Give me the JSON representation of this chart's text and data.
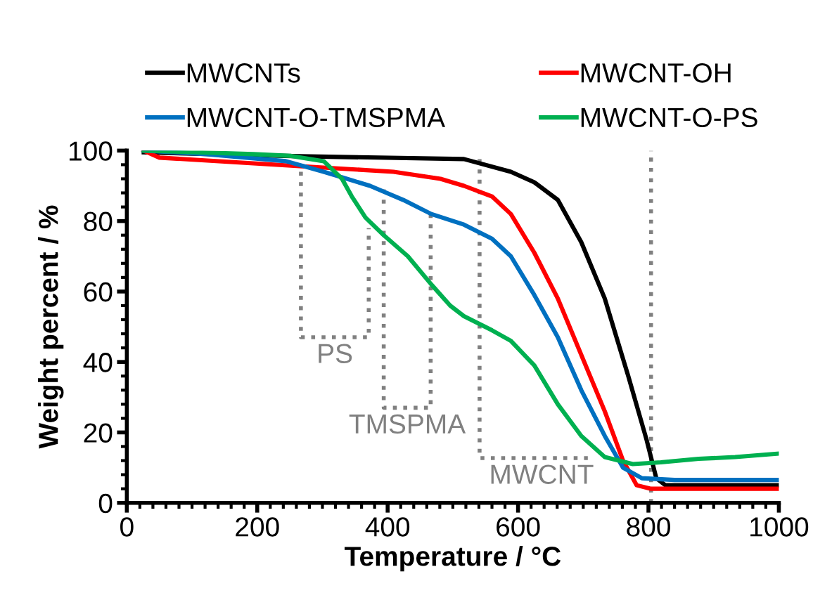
{
  "chart_data": {
    "type": "line",
    "xlabel": "Temperature / °C",
    "ylabel": "Weight percent / %",
    "xlim": [
      0,
      1000
    ],
    "xticks": [
      0,
      200,
      400,
      600,
      800,
      1000
    ],
    "ylim": [
      0,
      100
    ],
    "yticks": [
      0,
      20,
      40,
      60,
      80,
      100
    ],
    "grid": false,
    "legend": "top",
    "marker": "none",
    "line_style": "solid",
    "series": [
      {
        "name": "MWCNTs",
        "color": "#000000",
        "x": [
          26,
          265,
          517,
          589,
          625,
          661,
          697,
          733,
          769,
          797,
          812,
          826,
          1000
        ],
        "values": [
          99.5,
          98.4,
          97.6,
          94,
          91,
          86,
          74,
          58,
          36,
          18,
          7,
          5,
          5
        ]
      },
      {
        "name": "MWCNT-OH",
        "color": "#ff0000",
        "x": [
          26,
          50,
          265,
          409,
          481,
          517,
          560,
          589,
          625,
          661,
          697,
          733,
          761,
          782,
          804,
          1000
        ],
        "values": [
          100,
          98,
          95.6,
          94,
          92,
          90,
          87,
          82,
          71,
          58,
          42,
          26,
          12,
          5,
          4,
          4
        ]
      },
      {
        "name": "MWCNT-O-TMSPMA",
        "color": "#0070c0",
        "x": [
          26,
          122,
          244,
          302,
          373,
          424,
          467,
          517,
          560,
          589,
          625,
          661,
          697,
          733,
          761,
          790,
          840,
          1000
        ],
        "values": [
          100,
          99,
          97,
          94,
          90,
          86,
          82,
          79,
          75,
          70,
          59,
          47,
          32,
          19,
          10,
          7,
          6.5,
          6.5
        ]
      },
      {
        "name": "MWCNT-O-PS",
        "color": "#00b050",
        "x": [
          26,
          194,
          252,
          302,
          330,
          345,
          366,
          394,
          431,
          467,
          496,
          517,
          560,
          589,
          625,
          661,
          697,
          733,
          776,
          819,
          877,
          933,
          1000
        ],
        "values": [
          100,
          99,
          98.5,
          97,
          92,
          87,
          81,
          76,
          70,
          62,
          56,
          53,
          49,
          46,
          39,
          28,
          19,
          13,
          11,
          11.5,
          12.5,
          13,
          14
        ]
      },
      {
        "color": "#808080",
        "line_style": "dotted",
        "x": [
          267,
          267,
          371,
          371
        ],
        "values": [
          94,
          47,
          47,
          78
        ]
      },
      {
        "color": "#808080",
        "line_style": "dotted",
        "x": [
          394,
          394,
          466,
          466
        ],
        "values": [
          89,
          27,
          27,
          82
        ]
      },
      {
        "color": "#808080",
        "line_style": "dotted",
        "x": [
          541,
          541,
          707
        ],
        "values": [
          97.6,
          12.7,
          12.7
        ]
      }
    ],
    "ref_lines": [
      {
        "axis": "x",
        "value": 804,
        "color": "#808080",
        "line_style": "dotted"
      }
    ],
    "annotations": [
      {
        "text": "PS",
        "x": 319,
        "y": 47
      },
      {
        "text": "TMSPMA",
        "x": 430,
        "y": 27
      },
      {
        "text": "MWCNT",
        "x": 636,
        "y": 12.7
      }
    ]
  }
}
